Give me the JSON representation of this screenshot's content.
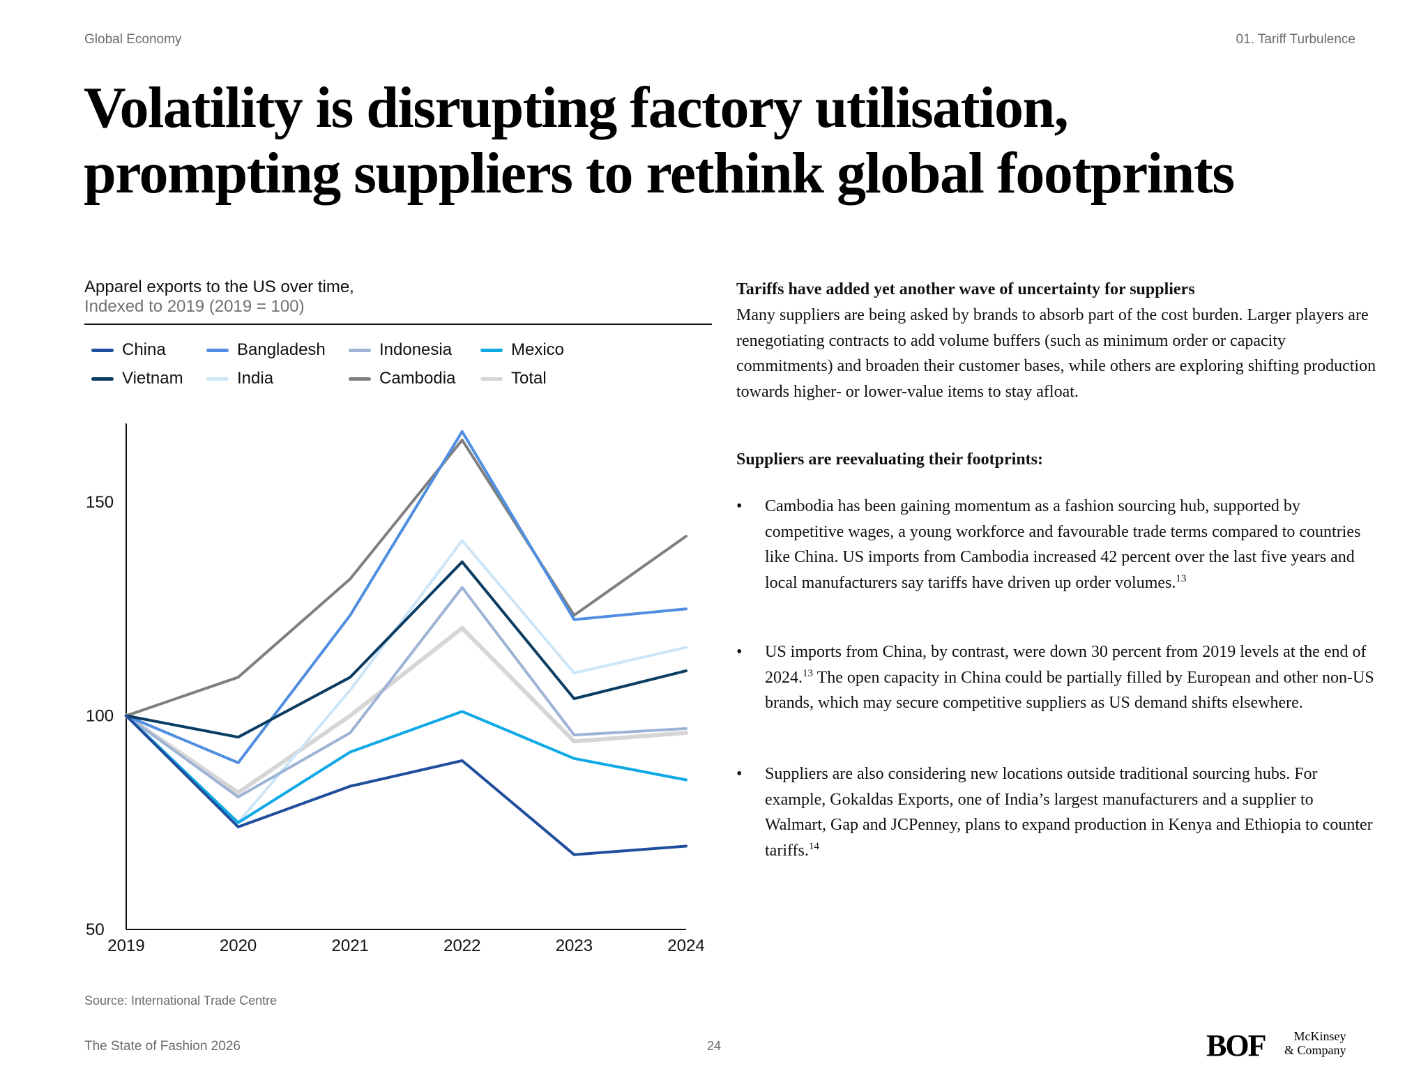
{
  "header": {
    "section": "Global Economy",
    "chapter": "01. Tariff Turbulence"
  },
  "title": {
    "line1": "Volatility is disrupting factory utilisation,",
    "line2": "prompting suppliers to rethink global footprints"
  },
  "chart_data": {
    "type": "line",
    "title": "Apparel exports to the US over time,",
    "subtitle": "Indexed to 2019 (2019 = 100)",
    "x": [
      "2019",
      "2020",
      "2021",
      "2022",
      "2023",
      "2024"
    ],
    "ylim": [
      50,
      170
    ],
    "yticks": [
      50,
      100,
      150
    ],
    "grid": false,
    "legend": "top",
    "series": [
      {
        "name": "China",
        "color": "#1f4e9c",
        "values": [
          100,
          74,
          83.5,
          89.5,
          67.5,
          69.5
        ]
      },
      {
        "name": "Vietnam",
        "color": "#0b3d63",
        "values": [
          100,
          95,
          109,
          136,
          104,
          110.5
        ]
      },
      {
        "name": "Bangladesh",
        "color": "#4f8ee0",
        "values": [
          100,
          89,
          123.5,
          166.5,
          122.5,
          125
        ]
      },
      {
        "name": "India",
        "color": "#cce6f8",
        "values": [
          100,
          75,
          106,
          141,
          110,
          116
        ]
      },
      {
        "name": "Indonesia",
        "color": "#9db3d6",
        "values": [
          100,
          81,
          96,
          130,
          95.5,
          97
        ]
      },
      {
        "name": "Cambodia",
        "color": "#7f7f7f",
        "values": [
          100,
          109,
          132,
          164.5,
          123.5,
          142
        ]
      },
      {
        "name": "Mexico",
        "color": "#0fa9e6",
        "values": [
          100,
          75,
          91.5,
          101,
          90,
          85
        ]
      },
      {
        "name": "Total",
        "color": "#d6d6d6",
        "values": [
          100,
          82,
          100,
          120.5,
          94,
          96
        ]
      }
    ]
  },
  "source": "Source: International Trade Centre",
  "right": {
    "heading1": "Tariffs have added yet another wave of uncertainty for suppliers",
    "para1": "Many suppliers are being asked by brands to absorb part of the cost burden. Larger players are renegotiating contracts to add volume buffers (such as minimum order or capacity commitments) and broaden their customer bases, while others are exploring shifting production towards higher- or lower-value items to stay afloat.",
    "heading2": "Suppliers are reevaluating their footprints:",
    "bullet_symbol": "•",
    "bullet1": "Cambodia has been gaining momentum as a fashion sourcing hub, supported by competitive wages, a young workforce and favourable trade terms compared to countries like China. US imports from Cambodia increased 42 percent over the last five years and local manufacturers say tariffs have driven up order volumes.",
    "bullet1_ref": "13",
    "bullet2a": "US imports from China, by contrast, were down 30 percent from 2019 levels at the end of 2024.",
    "bullet2_ref": "13",
    "bullet2b": "The open capacity in China could be partially filled by European and other non-US brands, which may secure competitive suppliers as US demand shifts elsewhere.",
    "bullet3": "Suppliers are also considering new locations outside traditional sourcing hubs. For example, Gokaldas Exports, one of India’s largest manufacturers and a supplier to Walmart, Gap and JCPenney, plans to expand production in Kenya and Ethiopia to counter tariffs.",
    "bullet3_ref": "14"
  },
  "footer": {
    "publication": "The State of Fashion 2026",
    "page": "24",
    "logo_bof": "BOF",
    "logo_mck_line1": "McKinsey",
    "logo_mck_line2": "& Company"
  }
}
